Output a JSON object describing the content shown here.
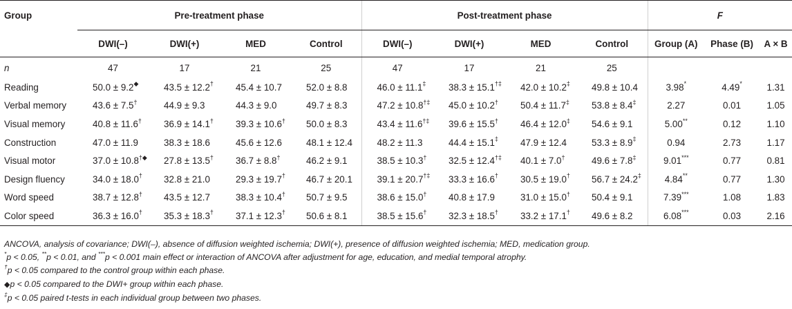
{
  "table": {
    "headers": {
      "group": "Group",
      "pre_phase": "Pre-treatment phase",
      "post_phase": "Post-treatment phase",
      "f_label": "F",
      "sub": [
        "DWI(–)",
        "DWI(+)",
        "MED",
        "Control",
        "DWI(–)",
        "DWI(+)",
        "MED",
        "Control",
        "Group (A)",
        "Phase (B)",
        "A × B"
      ]
    },
    "n_row": {
      "label": "n",
      "values": [
        "47",
        "17",
        "21",
        "25",
        "47",
        "17",
        "21",
        "25"
      ]
    },
    "rows": [
      {
        "label": "Reading",
        "cells": [
          {
            "v": "50.0 ± 9.2",
            "s": "◆"
          },
          {
            "v": "43.5 ± 12.2",
            "s": "†"
          },
          {
            "v": "45.4 ± 10.7",
            "s": ""
          },
          {
            "v": "52.0 ± 8.8",
            "s": ""
          },
          {
            "v": "46.0 ± 11.1",
            "s": "‡"
          },
          {
            "v": "38.3 ± 15.1",
            "s": "†‡"
          },
          {
            "v": "42.0 ± 10.2",
            "s": "‡"
          },
          {
            "v": "49.8 ± 10.4",
            "s": ""
          }
        ],
        "f": [
          {
            "v": "3.98",
            "s": "*"
          },
          {
            "v": "4.49",
            "s": "*"
          },
          {
            "v": "1.31",
            "s": ""
          }
        ]
      },
      {
        "label": "Verbal memory",
        "cells": [
          {
            "v": "43.6 ± 7.5",
            "s": "†"
          },
          {
            "v": "44.9 ± 9.3",
            "s": ""
          },
          {
            "v": "44.3 ± 9.0",
            "s": ""
          },
          {
            "v": "49.7 ± 8.3",
            "s": ""
          },
          {
            "v": "47.2 ± 10.8",
            "s": "†‡"
          },
          {
            "v": "45.0 ± 10.2",
            "s": "†"
          },
          {
            "v": "50.4 ± 11.7",
            "s": "‡"
          },
          {
            "v": "53.8 ± 8.4",
            "s": "‡"
          }
        ],
        "f": [
          {
            "v": "2.27",
            "s": ""
          },
          {
            "v": "0.01",
            "s": ""
          },
          {
            "v": "1.05",
            "s": ""
          }
        ]
      },
      {
        "label": "Visual memory",
        "cells": [
          {
            "v": "40.8 ± 11.6",
            "s": "†"
          },
          {
            "v": "36.9 ± 14.1",
            "s": "†"
          },
          {
            "v": "39.3 ± 10.6",
            "s": "†"
          },
          {
            "v": "50.0 ± 8.3",
            "s": ""
          },
          {
            "v": "43.4 ± 11.6",
            "s": "†‡"
          },
          {
            "v": "39.6 ± 15.5",
            "s": "†"
          },
          {
            "v": "46.4 ± 12.0",
            "s": "‡"
          },
          {
            "v": "54.6 ± 9.1",
            "s": ""
          }
        ],
        "f": [
          {
            "v": "5.00",
            "s": "**"
          },
          {
            "v": "0.12",
            "s": ""
          },
          {
            "v": "1.10",
            "s": ""
          }
        ]
      },
      {
        "label": "Construction",
        "cells": [
          {
            "v": "47.0 ± 11.9",
            "s": ""
          },
          {
            "v": "38.3 ± 18.6",
            "s": ""
          },
          {
            "v": "45.6 ± 12.6",
            "s": ""
          },
          {
            "v": "48.1 ± 12.4",
            "s": ""
          },
          {
            "v": "48.2 ± 11.3",
            "s": ""
          },
          {
            "v": "44.4 ± 15.1",
            "s": "‡"
          },
          {
            "v": "47.9 ± 12.4",
            "s": ""
          },
          {
            "v": "53.3 ± 8.9",
            "s": "‡"
          }
        ],
        "f": [
          {
            "v": "0.94",
            "s": ""
          },
          {
            "v": "2.73",
            "s": ""
          },
          {
            "v": "1.17",
            "s": ""
          }
        ]
      },
      {
        "label": "Visual motor",
        "cells": [
          {
            "v": "37.0 ± 10.8",
            "s": "†◆"
          },
          {
            "v": "27.8 ± 13.5",
            "s": "†"
          },
          {
            "v": "36.7 ± 8.8",
            "s": "†"
          },
          {
            "v": "46.2 ± 9.1",
            "s": ""
          },
          {
            "v": "38.5 ± 10.3",
            "s": "†"
          },
          {
            "v": "32.5 ± 12.4",
            "s": "†‡"
          },
          {
            "v": "40.1 ± 7.0",
            "s": "†"
          },
          {
            "v": "49.6 ± 7.8",
            "s": "‡"
          }
        ],
        "f": [
          {
            "v": "9.01",
            "s": "***"
          },
          {
            "v": "0.77",
            "s": ""
          },
          {
            "v": "0.81",
            "s": ""
          }
        ]
      },
      {
        "label": "Design fluency",
        "cells": [
          {
            "v": "34.0 ± 18.0",
            "s": "†"
          },
          {
            "v": "32.8 ± 21.0",
            "s": ""
          },
          {
            "v": "29.3 ± 19.7",
            "s": "†"
          },
          {
            "v": "46.7 ± 20.1",
            "s": ""
          },
          {
            "v": "39.1 ± 20.7",
            "s": "†‡"
          },
          {
            "v": "33.3 ± 16.6",
            "s": "†"
          },
          {
            "v": "30.5 ± 19.0",
            "s": "†"
          },
          {
            "v": "56.7 ± 24.2",
            "s": "‡"
          }
        ],
        "f": [
          {
            "v": "4.84",
            "s": "**"
          },
          {
            "v": "0.77",
            "s": ""
          },
          {
            "v": "1.30",
            "s": ""
          }
        ]
      },
      {
        "label": "Word speed",
        "cells": [
          {
            "v": "38.7 ± 12.8",
            "s": "†"
          },
          {
            "v": "43.5 ± 12.7",
            "s": ""
          },
          {
            "v": "38.3 ± 10.4",
            "s": "†"
          },
          {
            "v": "50.7 ± 9.5",
            "s": ""
          },
          {
            "v": "38.6 ± 15.0",
            "s": "†"
          },
          {
            "v": "40.8 ± 17.9",
            "s": ""
          },
          {
            "v": "31.0 ± 15.0",
            "s": "†"
          },
          {
            "v": "50.4 ± 9.1",
            "s": ""
          }
        ],
        "f": [
          {
            "v": "7.39",
            "s": "***"
          },
          {
            "v": "1.08",
            "s": ""
          },
          {
            "v": "1.83",
            "s": ""
          }
        ]
      },
      {
        "label": "Color speed",
        "cells": [
          {
            "v": "36.3 ± 16.0",
            "s": "†"
          },
          {
            "v": "35.3 ± 18.3",
            "s": "†"
          },
          {
            "v": "37.1 ± 12.3",
            "s": "†"
          },
          {
            "v": "50.6 ± 8.1",
            "s": ""
          },
          {
            "v": "38.5 ± 15.6",
            "s": "†"
          },
          {
            "v": "32.3 ± 18.5",
            "s": "†"
          },
          {
            "v": "33.2 ± 17.1",
            "s": "†"
          },
          {
            "v": "49.6 ± 8.2",
            "s": ""
          }
        ],
        "f": [
          {
            "v": "6.08",
            "s": "***"
          },
          {
            "v": "0.03",
            "s": ""
          },
          {
            "v": "2.16",
            "s": ""
          }
        ]
      }
    ]
  },
  "notes": {
    "abbrev": "ANCOVA, analysis of covariance; DWI(–), absence of diffusion weighted ischemia; DWI(+), presence of diffusion weighted ischemia; MED, medication group.",
    "sig": {
      "p1": "p < 0.05, ",
      "p2": "p < 0.01, and ",
      "p3": "p < 0.001 main effect or interaction of ANCOVA after adjustment for age, education, and medial temporal atrophy.",
      "m1": "*",
      "m2": "**",
      "m3": "***"
    },
    "dagger": {
      "mark": "†",
      "text": "p < 0.05 compared to the control group within each phase."
    },
    "diamond": {
      "mark": "◆",
      "text": "p < 0.05 compared to the DWI+ group within each phase."
    },
    "ddagger": {
      "mark": "‡",
      "text": "p < 0.05 paired t-tests in each individual group between two phases."
    }
  }
}
